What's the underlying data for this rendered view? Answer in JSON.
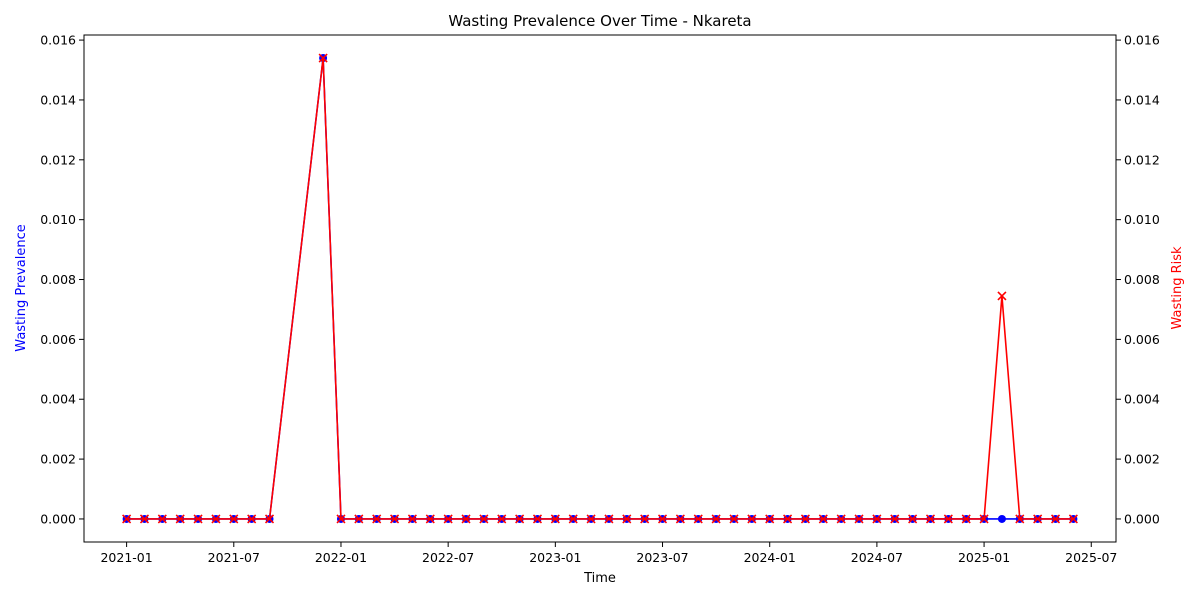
{
  "chart_data": {
    "type": "line",
    "title": "Wasting Prevalence Over Time - Nkareta",
    "xlabel": "Time",
    "ylabel_left": "Wasting Prevalence",
    "ylabel_right": "Wasting Risk",
    "ylim": [
      -0.00077,
      0.01617
    ],
    "yticks": [
      "0.000",
      "0.002",
      "0.004",
      "0.006",
      "0.008",
      "0.010",
      "0.012",
      "0.014",
      "0.016"
    ],
    "xticks": [
      "2021-01",
      "2021-07",
      "2022-01",
      "2022-07",
      "2023-01",
      "2023-07",
      "2024-01",
      "2024-07",
      "2025-01",
      "2025-07"
    ],
    "x": [
      "2021-01",
      "2021-02",
      "2021-03",
      "2021-04",
      "2021-05",
      "2021-06",
      "2021-07",
      "2021-08",
      "2021-09",
      "2021-12",
      "2022-01",
      "2022-02",
      "2022-03",
      "2022-04",
      "2022-05",
      "2022-06",
      "2022-07",
      "2022-08",
      "2022-09",
      "2022-10",
      "2022-11",
      "2022-12",
      "2023-01",
      "2023-02",
      "2023-03",
      "2023-04",
      "2023-05",
      "2023-06",
      "2023-07",
      "2023-08",
      "2023-09",
      "2023-10",
      "2023-11",
      "2023-12",
      "2024-01",
      "2024-02",
      "2024-03",
      "2024-04",
      "2024-05",
      "2024-06",
      "2024-07",
      "2024-08",
      "2024-09",
      "2024-10",
      "2024-11",
      "2024-12",
      "2025-01",
      "2025-02",
      "2025-03",
      "2025-04",
      "2025-05",
      "2025-06"
    ],
    "series": [
      {
        "axis": "left",
        "color": "#0000ff",
        "marker": "circle",
        "values": [
          0,
          0,
          0,
          0,
          0,
          0,
          0,
          0,
          0,
          0.0154,
          0,
          0,
          0,
          0,
          0,
          0,
          0,
          0,
          0,
          0,
          0,
          0,
          0,
          0,
          0,
          0,
          0,
          0,
          0,
          0,
          0,
          0,
          0,
          0,
          0,
          0,
          0,
          0,
          0,
          0,
          0,
          0,
          0,
          0,
          0,
          0,
          0,
          0,
          0,
          0,
          0,
          0
        ]
      },
      {
        "axis": "right",
        "color": "#ff0000",
        "marker": "x",
        "values": [
          0,
          0,
          0,
          0,
          0,
          0,
          0,
          0,
          0,
          0.0154,
          0,
          0,
          0,
          0,
          0,
          0,
          0,
          0,
          0,
          0,
          0,
          0,
          0,
          0,
          0,
          0,
          0,
          0,
          0,
          0,
          0,
          0,
          0,
          0,
          0,
          0,
          0,
          0,
          0,
          0,
          0,
          0,
          0,
          0,
          0,
          0,
          0,
          0.00745,
          0,
          0,
          0,
          0
        ]
      }
    ]
  }
}
